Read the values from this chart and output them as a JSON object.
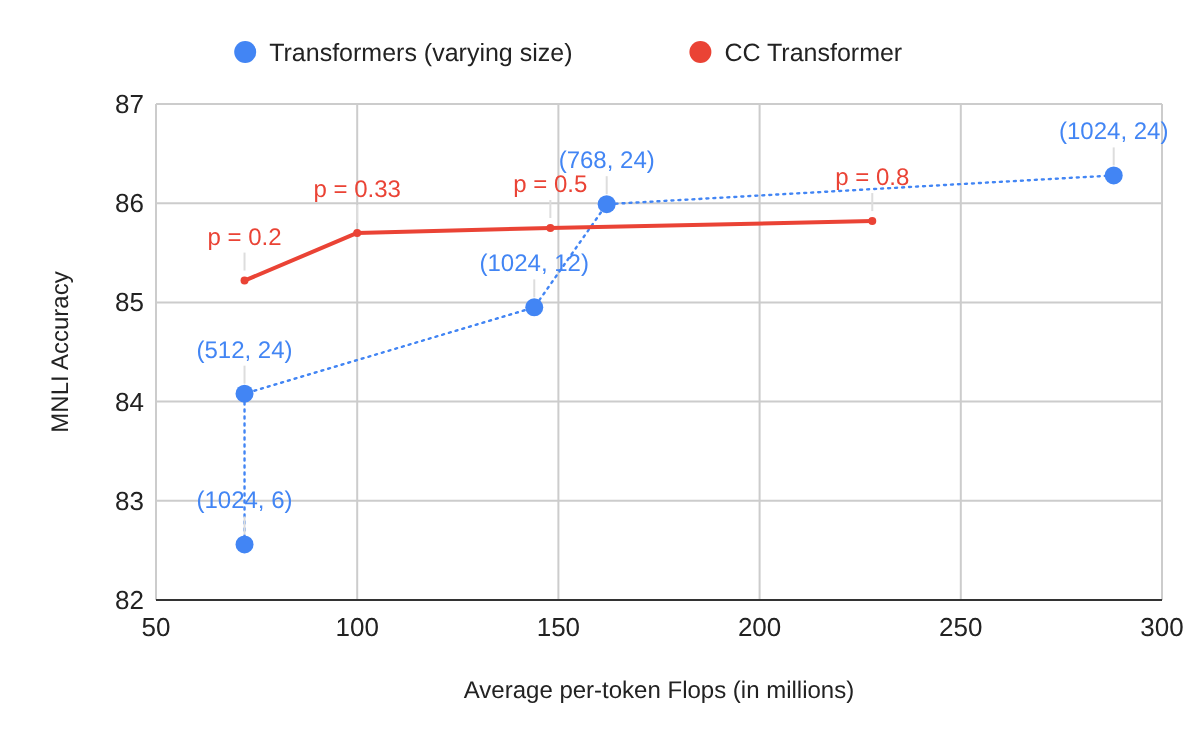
{
  "chart_data": {
    "type": "line",
    "xlabel": "Average per-token Flops (in millions)",
    "ylabel": "MNLI Accuracy",
    "xlim": [
      50,
      300
    ],
    "xticks": [
      50,
      100,
      150,
      200,
      250,
      300
    ],
    "ylim": [
      82,
      87
    ],
    "yticks": [
      82,
      83,
      84,
      85,
      86,
      87
    ],
    "grid": true,
    "legend": "top",
    "series": [
      {
        "name": "Transformers (varying size)",
        "color": "#4285f4",
        "marker": "circle",
        "line_style": "dotted",
        "x": [
          72,
          72,
          144,
          162,
          288
        ],
        "values": [
          82.56,
          84.08,
          84.95,
          85.99,
          86.28
        ]
      },
      {
        "name": "CC Transformer",
        "color": "#ea4335",
        "marker": "circle",
        "line_style": "solid",
        "x": [
          72,
          100,
          148,
          228
        ],
        "values": [
          85.22,
          85.7,
          85.75,
          85.82
        ]
      }
    ],
    "annotations": [
      {
        "text": "(1024, 6)",
        "x": 72,
        "y": 82.56
      },
      {
        "text": "(512, 24)",
        "x": 72,
        "y": 84.08
      },
      {
        "text": "(1024, 12)",
        "x": 144,
        "y": 84.95
      },
      {
        "text": "(768, 24)",
        "x": 162,
        "y": 85.99
      },
      {
        "text": "(1024, 24)",
        "x": 288,
        "y": 86.28
      },
      {
        "text": "p = 0.2",
        "x": 72,
        "y": 85.22
      },
      {
        "text": "p = 0.33",
        "x": 100,
        "y": 85.7
      },
      {
        "text": "p = 0.5",
        "x": 148,
        "y": 85.75
      },
      {
        "text": "p = 0.8",
        "x": 228,
        "y": 85.82
      }
    ]
  }
}
